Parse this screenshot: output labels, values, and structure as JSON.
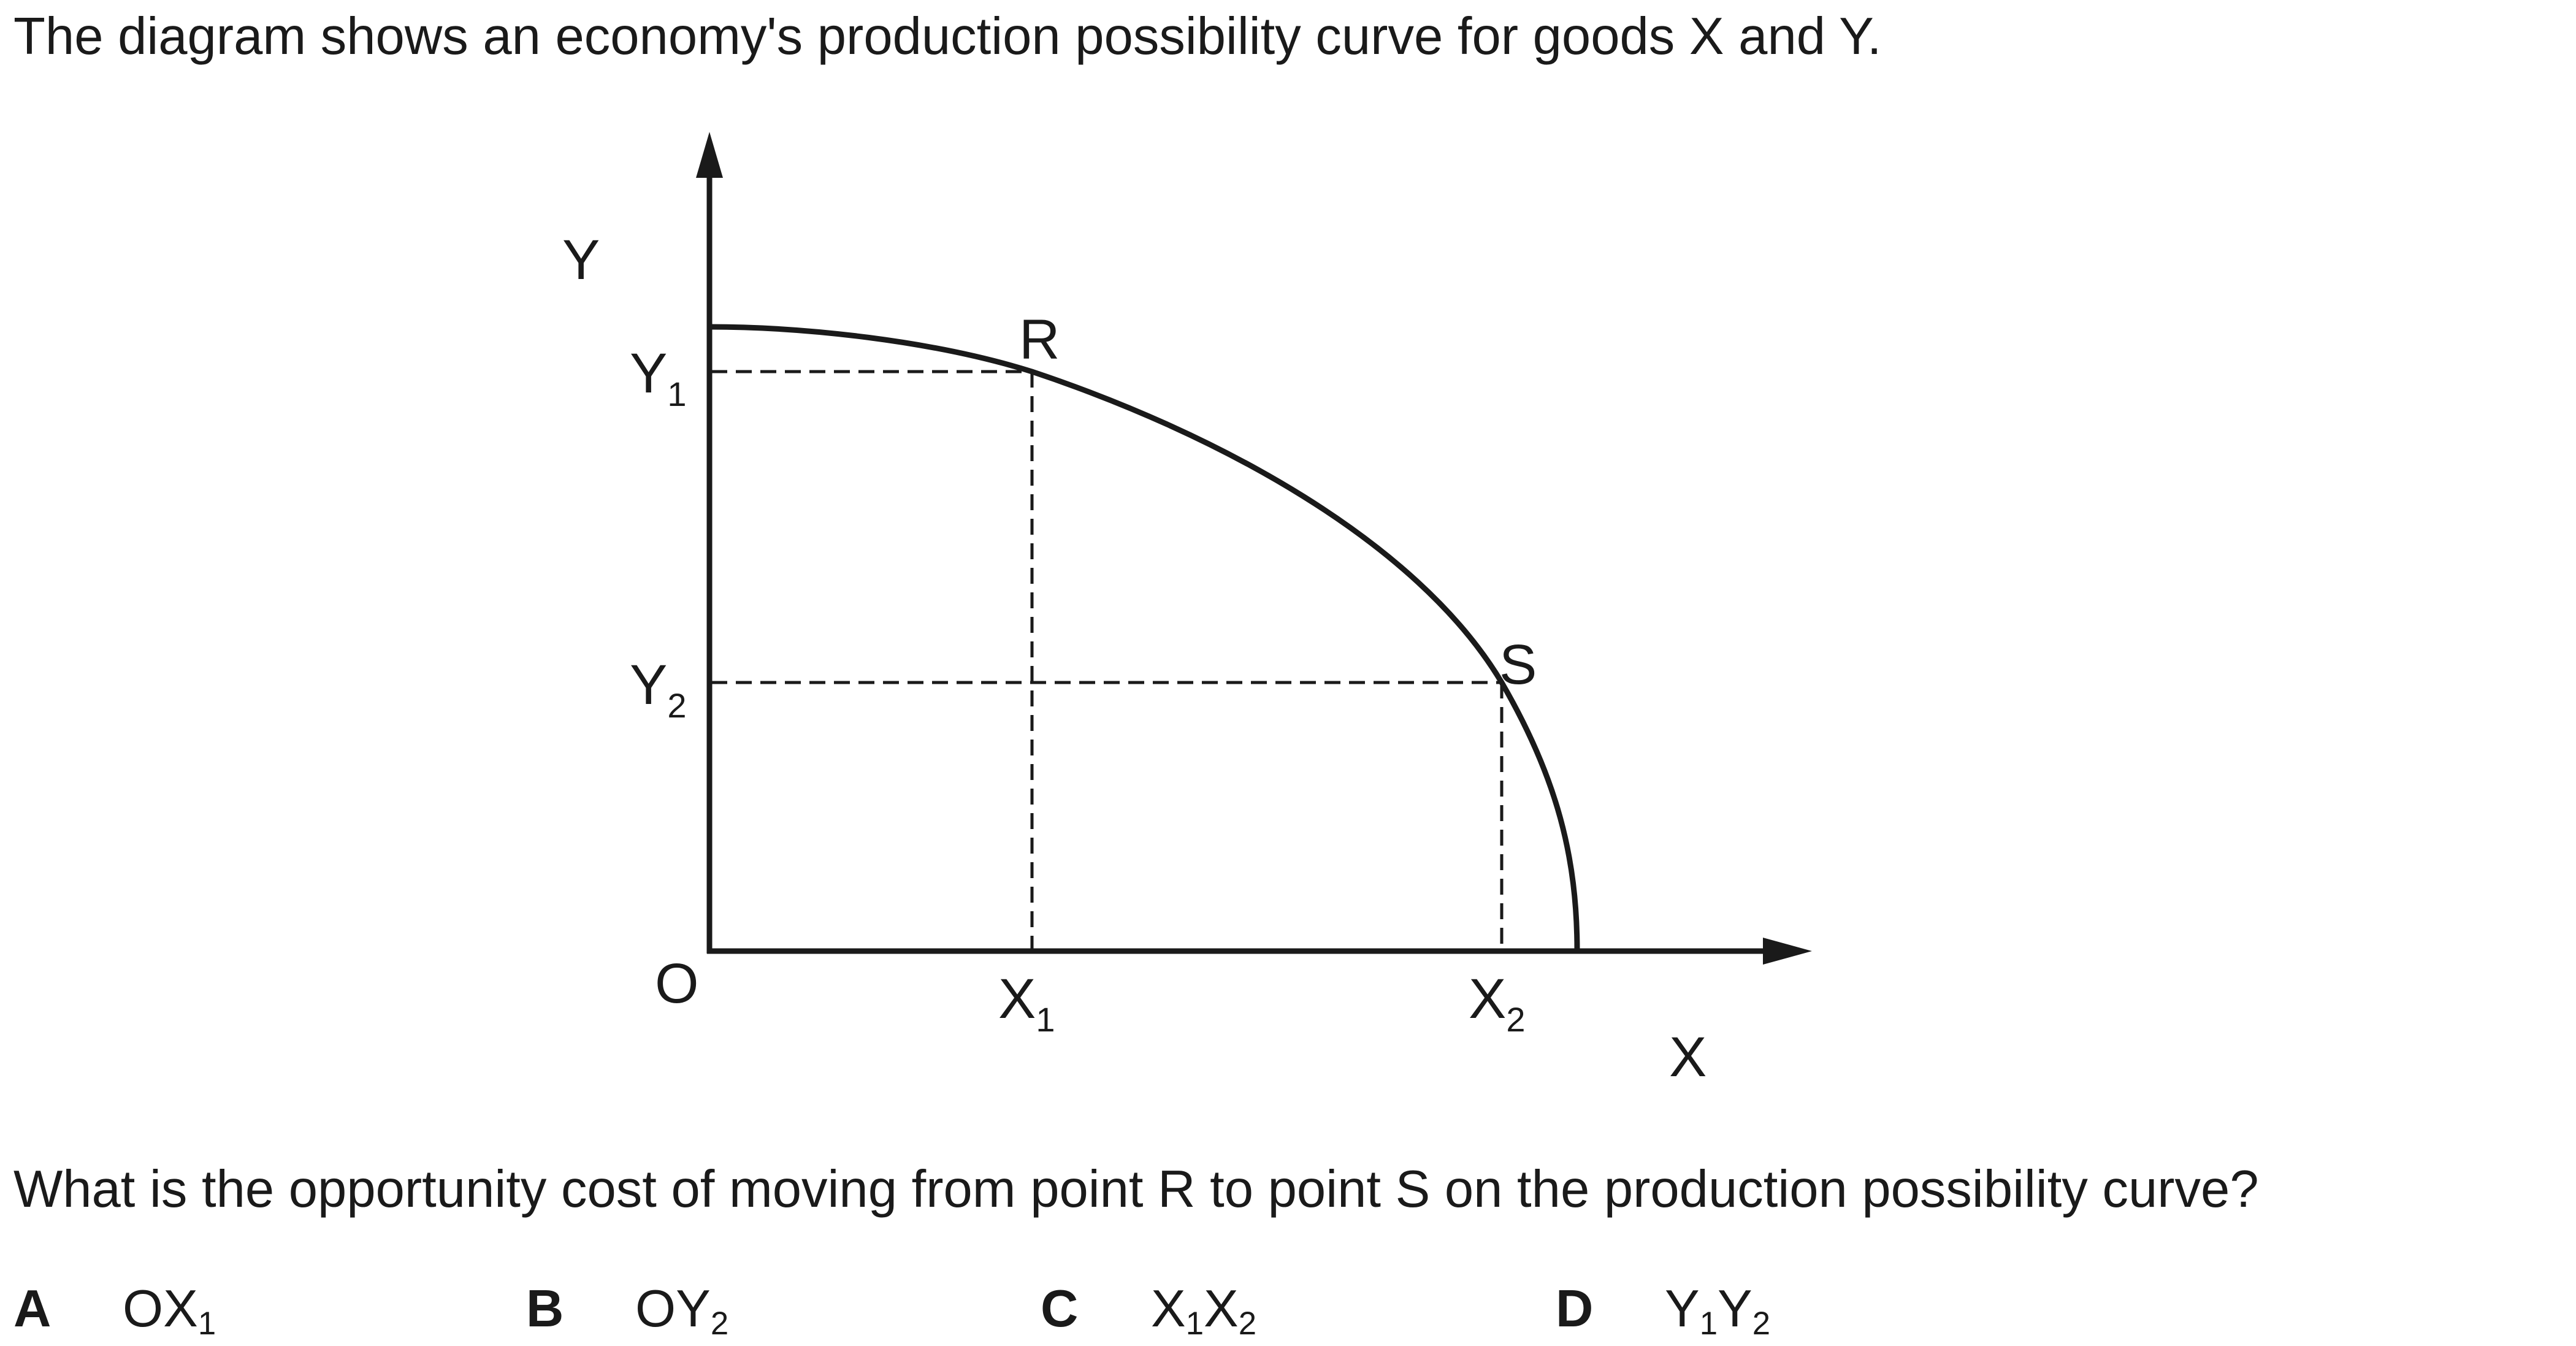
{
  "intro_text": "The diagram shows an economy's production possibility curve for goods X and Y.",
  "question_text": "What is the opportunity cost of moving from point R to point S on the production possibility curve?",
  "diagram": {
    "y_axis_label": "Y",
    "x_axis_label": "X",
    "origin_label": "O",
    "y1": {
      "main": "Y",
      "sub": "1"
    },
    "y2": {
      "main": "Y",
      "sub": "2"
    },
    "x1": {
      "main": "X",
      "sub": "1"
    },
    "x2": {
      "main": "X",
      "sub": "2"
    },
    "point_r": "R",
    "point_s": "S",
    "colors": {
      "ink": "#1a1a1a"
    }
  },
  "options": [
    {
      "letter": "A",
      "parts": [
        {
          "main": "OX",
          "sub": "1"
        }
      ]
    },
    {
      "letter": "B",
      "parts": [
        {
          "main": "OY",
          "sub": "2"
        }
      ]
    },
    {
      "letter": "C",
      "parts": [
        {
          "main": "X",
          "sub": "1"
        },
        {
          "main": "X",
          "sub": "2"
        }
      ]
    },
    {
      "letter": "D",
      "parts": [
        {
          "main": "Y",
          "sub": "1"
        },
        {
          "main": "Y",
          "sub": "2"
        }
      ]
    }
  ]
}
